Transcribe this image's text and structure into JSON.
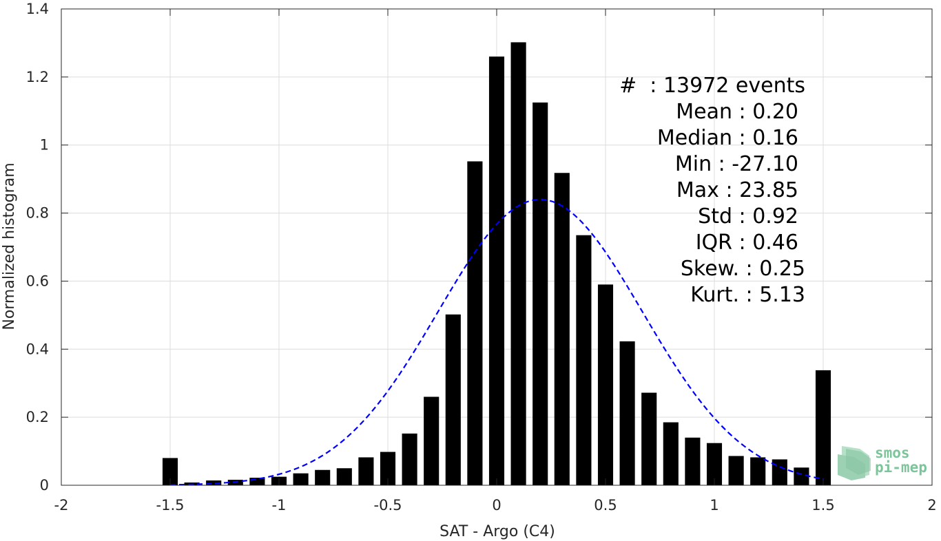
{
  "chart_data": {
    "type": "bar",
    "title": "",
    "xlabel": "SAT - Argo (C4)",
    "ylabel": "Normalized histogram",
    "xlim": [
      -2,
      2
    ],
    "ylim": [
      0,
      1.4
    ],
    "xticks": [
      -2,
      -1.5,
      -1,
      -0.5,
      0,
      0.5,
      1,
      1.5,
      2
    ],
    "xtick_labels": [
      "-2",
      "-1.5",
      "-1",
      "-0.5",
      "0",
      "0.5",
      "1",
      "1.5",
      "2"
    ],
    "yticks": [
      0,
      0.2,
      0.4,
      0.6,
      0.8,
      1,
      1.2,
      1.4
    ],
    "ytick_labels": [
      "0",
      "0.2",
      "0.4",
      "0.6",
      "0.8",
      "1",
      "1.2",
      "1.4"
    ],
    "grid": true,
    "bar_color": "#000000",
    "bar_centers": [
      -1.5,
      -1.4,
      -1.3,
      -1.2,
      -1.1,
      -1.0,
      -0.9,
      -0.8,
      -0.7,
      -0.6,
      -0.5,
      -0.4,
      -0.3,
      -0.2,
      -0.1,
      0.0,
      0.1,
      0.2,
      0.3,
      0.4,
      0.5,
      0.6,
      0.7,
      0.8,
      0.9,
      1.0,
      1.1,
      1.2,
      1.3,
      1.4,
      1.5
    ],
    "values": [
      0.08,
      0.008,
      0.014,
      0.016,
      0.022,
      0.025,
      0.035,
      0.045,
      0.05,
      0.082,
      0.098,
      0.152,
      0.26,
      0.502,
      0.952,
      1.26,
      1.302,
      1.125,
      0.918,
      0.735,
      0.59,
      0.423,
      0.272,
      0.185,
      0.14,
      0.124,
      0.086,
      0.082,
      0.076,
      0.052,
      0.338
    ],
    "fit": {
      "type": "normal",
      "mean": 0.2,
      "std": 0.47,
      "color": "#0000ff",
      "style": "dashed",
      "x_range": [
        -1.5,
        1.5
      ]
    },
    "stats": [
      {
        "label": "#  : 13972 events"
      },
      {
        "label": "Mean : 0.20"
      },
      {
        "label": "Median : 0.16"
      },
      {
        "label": "Min : -27.10"
      },
      {
        "label": "Max : 23.85"
      },
      {
        "label": "Std : 0.92"
      },
      {
        "label": "IQR : 0.46"
      },
      {
        "label": "Skew. : 0.25"
      },
      {
        "label": "Kurt. : 5.13"
      }
    ]
  },
  "logo": {
    "line1": "smos",
    "line2": "pi-mep",
    "color": "#7cc49a"
  }
}
